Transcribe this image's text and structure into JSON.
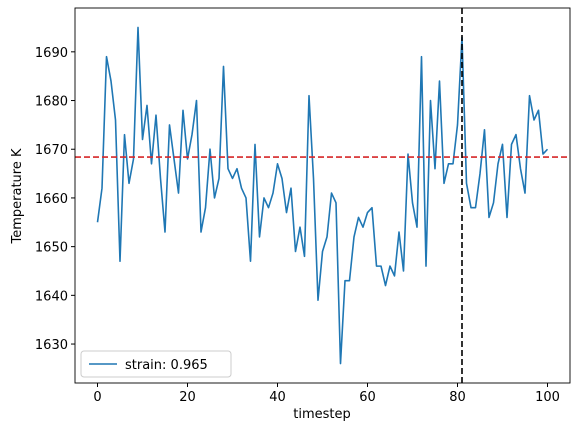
{
  "chart_data": {
    "type": "line",
    "xlabel": "timestep",
    "ylabel": "Temperature K",
    "x": [
      0,
      1,
      2,
      3,
      4,
      5,
      6,
      7,
      8,
      9,
      10,
      11,
      12,
      13,
      14,
      15,
      16,
      17,
      18,
      19,
      20,
      21,
      22,
      23,
      24,
      25,
      26,
      27,
      28,
      29,
      30,
      31,
      32,
      33,
      34,
      35,
      36,
      37,
      38,
      39,
      40,
      41,
      42,
      43,
      44,
      45,
      46,
      47,
      48,
      49,
      50,
      51,
      52,
      53,
      54,
      55,
      56,
      57,
      58,
      59,
      60,
      61,
      62,
      63,
      64,
      65,
      66,
      67,
      68,
      69,
      70,
      71,
      72,
      73,
      74,
      75,
      76,
      77,
      78,
      79,
      80,
      81,
      82,
      83,
      84,
      85,
      86,
      87,
      88,
      89,
      90,
      91,
      92,
      93,
      94,
      95,
      96,
      97,
      98,
      99,
      100
    ],
    "series": [
      {
        "name": "strain: 0.965",
        "color": "#1f77b4",
        "values": [
          1655,
          1662,
          1689,
          1684,
          1676,
          1647,
          1673,
          1663,
          1668,
          1695,
          1672,
          1679,
          1667,
          1677,
          1664,
          1653,
          1675,
          1668,
          1661,
          1678,
          1668,
          1673,
          1680,
          1653,
          1658,
          1670,
          1660,
          1664,
          1687,
          1666,
          1664,
          1666,
          1662,
          1660,
          1647,
          1671,
          1652,
          1660,
          1658,
          1661,
          1667,
          1664,
          1657,
          1662,
          1649,
          1654,
          1648,
          1681,
          1664,
          1639,
          1649,
          1652,
          1661,
          1659,
          1626,
          1643,
          1643,
          1652,
          1656,
          1654,
          1657,
          1658,
          1646,
          1646,
          1642,
          1646,
          1644,
          1653,
          1645,
          1669,
          1659,
          1654,
          1689,
          1646,
          1680,
          1666,
          1684,
          1663,
          1667,
          1667,
          1675,
          1693,
          1663,
          1658,
          1658,
          1665,
          1674,
          1656,
          1659,
          1667,
          1671,
          1656,
          1671,
          1673,
          1666,
          1661,
          1681,
          1676,
          1678,
          1669,
          1670
        ]
      }
    ],
    "hline": {
      "value": 1668.4,
      "color": "#d62728"
    },
    "vline": {
      "value": 81,
      "color": "#000000"
    },
    "xlim": [
      -5,
      105
    ],
    "ylim": [
      1622,
      1699
    ],
    "xticks": [
      0,
      20,
      40,
      60,
      80,
      100
    ],
    "yticks": [
      1630,
      1640,
      1650,
      1660,
      1670,
      1680,
      1690
    ],
    "grid": false,
    "legend": "lower left"
  }
}
